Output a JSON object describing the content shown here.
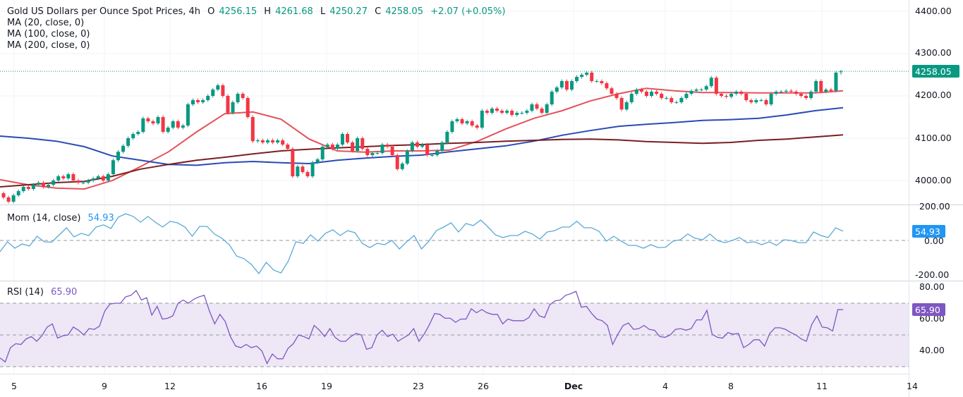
{
  "header": {
    "symbol": "Gold US Dollars per Ounce Spot Prices, 4h",
    "open_label": "O",
    "open": "4256.15",
    "high_label": "H",
    "high": "4261.68",
    "low_label": "L",
    "low": "4250.27",
    "close_label": "C",
    "close": "4258.05",
    "change": "+2.07 (+0.05%)"
  },
  "indicators": {
    "ma20": "MA (20, close, 0)",
    "ma100": "MA (100, close, 0)",
    "ma200": "MA (200, close, 0)",
    "mom_label": "Mom (14, close)",
    "mom_value": "54.93",
    "rsi_label": "RSI (14)",
    "rsi_value": "65.90"
  },
  "colors": {
    "up": "#089981",
    "down": "#f23645",
    "ma20": "#e5525a",
    "ma100": "#2a4bb5",
    "ma200": "#7a1f22",
    "mom": "#5aa9d6",
    "rsi": "#7e57c2",
    "rsi_band": "#ede7f6"
  },
  "price_axis": {
    "ticks": [
      "4400.00",
      "4300.00",
      "4200.00",
      "4100.00",
      "4000.00"
    ],
    "last_price": "4258.05"
  },
  "mom_axis": {
    "ticks": [
      "200.00",
      "0.00",
      "-200.00"
    ],
    "last": "54.93"
  },
  "rsi_axis": {
    "ticks": [
      "80.00",
      "60.00",
      "40.00"
    ],
    "last": "65.90"
  },
  "time_axis": {
    "labels": [
      "5",
      "9",
      "12",
      "16",
      "19",
      "23",
      "26",
      "Dec",
      "4",
      "8",
      "11",
      "14"
    ]
  },
  "chart_data": [
    {
      "type": "candlestick",
      "title": "Gold US Dollars per Ounce Spot Prices, 4h",
      "ylim": [
        3930,
        4430
      ],
      "last_bar": {
        "open": 4256.15,
        "high": 4261.68,
        "low": 4250.27,
        "close": 4258.05
      },
      "closes": [
        3960,
        3950,
        3965,
        3975,
        3985,
        3980,
        3990,
        3995,
        3985,
        3990,
        4000,
        4010,
        4005,
        4015,
        4000,
        3995,
        3995,
        4000,
        4005,
        4010,
        4000,
        4015,
        4048,
        4068,
        4082,
        4100,
        4110,
        4115,
        4147,
        4140,
        4135,
        4150,
        4115,
        4125,
        4140,
        4125,
        4130,
        4180,
        4190,
        4185,
        4190,
        4200,
        4215,
        4225,
        4200,
        4160,
        4185,
        4205,
        4195,
        4150,
        4093,
        4095,
        4090,
        4095,
        4090,
        4095,
        4085,
        4075,
        4010,
        4033,
        4020,
        4010,
        4043,
        4050,
        4080,
        4085,
        4075,
        4085,
        4110,
        4090,
        4070,
        4100,
        4075,
        4060,
        4065,
        4065,
        4085,
        4080,
        4060,
        4027,
        4040,
        4070,
        4090,
        4080,
        4085,
        4060,
        4060,
        4070,
        4090,
        4115,
        4140,
        4145,
        4135,
        4140,
        4130,
        4125,
        4165,
        4160,
        4170,
        4165,
        4160,
        4165,
        4155,
        4160,
        4160,
        4165,
        4180,
        4170,
        4160,
        4180,
        4210,
        4220,
        4235,
        4215,
        4235,
        4245,
        4250,
        4255,
        4235,
        4235,
        4230,
        4218,
        4205,
        4195,
        4168,
        4185,
        4205,
        4215,
        4210,
        4200,
        4210,
        4205,
        4195,
        4195,
        4185,
        4185,
        4195,
        4205,
        4212,
        4215,
        4215,
        4223,
        4243,
        4205,
        4200,
        4198,
        4205,
        4210,
        4205,
        4190,
        4185,
        4190,
        4190,
        4180,
        4205,
        4210,
        4210,
        4212,
        4210,
        4205,
        4200,
        4195,
        4210,
        4235,
        4210,
        4215,
        4212,
        4255,
        4258.05
      ],
      "series": [
        {
          "name": "MA (20, close, 0)",
          "values": [
            4002,
            3990,
            3982,
            3980,
            4000,
            4033,
            4068,
            4115,
            4158,
            4162,
            4145,
            4098,
            4070,
            4067,
            4070,
            4070,
            4072,
            4093,
            4122,
            4147,
            4165,
            4188,
            4205,
            4218,
            4212,
            4208,
            4208,
            4207,
            4207,
            4207,
            4212
          ]
        },
        {
          "name": "MA (100, close, 0)",
          "values": [
            4105,
            4100,
            4093,
            4080,
            4058,
            4048,
            4038,
            4036,
            4042,
            4045,
            4042,
            4040,
            4048,
            4053,
            4057,
            4060,
            4068,
            4075,
            4082,
            4093,
            4107,
            4118,
            4128,
            4133,
            4137,
            4142,
            4144,
            4147,
            4155,
            4165,
            4172
          ]
        },
        {
          "name": "MA (200, close, 0)",
          "values": [
            3985,
            3990,
            3995,
            3998,
            4010,
            4027,
            4038,
            4048,
            4055,
            4063,
            4070,
            4074,
            4077,
            4080,
            4083,
            4085,
            4088,
            4090,
            4093,
            4095,
            4097,
            4098,
            4096,
            4092,
            4090,
            4088,
            4090,
            4095,
            4098,
            4103,
            4108
          ]
        }
      ]
    },
    {
      "type": "line",
      "title": "Mom (14, close)",
      "ylim": [
        -200,
        200
      ],
      "reference_line": 0,
      "values": [
        -67,
        -8,
        -46,
        -21,
        -33,
        25,
        -8,
        -10,
        33,
        75,
        21,
        42,
        29,
        79,
        92,
        71,
        138,
        158,
        142,
        108,
        142,
        108,
        79,
        113,
        104,
        79,
        25,
        83,
        83,
        38,
        13,
        -25,
        -92,
        -108,
        -142,
        -196,
        -129,
        -175,
        -192,
        -121,
        -8,
        -17,
        33,
        -4,
        42,
        63,
        29,
        58,
        46,
        -17,
        -42,
        -17,
        -25,
        0,
        -50,
        -8,
        29,
        -50,
        -4,
        58,
        79,
        104,
        50,
        100,
        88,
        121,
        79,
        33,
        17,
        29,
        29,
        54,
        38,
        8,
        50,
        58,
        79,
        79,
        113,
        75,
        75,
        54,
        -4,
        25,
        -4,
        -29,
        -29,
        -46,
        -25,
        -42,
        -40,
        -4,
        4,
        38,
        13,
        4,
        38,
        0,
        -13,
        0,
        17,
        -13,
        -8,
        -25,
        -8,
        -29,
        4,
        0,
        -13,
        -13,
        50,
        29,
        17,
        75,
        54.93
      ]
    },
    {
      "type": "line",
      "title": "RSI (14)",
      "ylim": [
        25,
        82
      ],
      "bands": [
        30,
        50,
        70
      ],
      "values": [
        35.5,
        33,
        42,
        44.5,
        44,
        47.5,
        49,
        46,
        49.5,
        55,
        57,
        48,
        49.5,
        50,
        55,
        53,
        50,
        54,
        53.5,
        55.5,
        65,
        69.5,
        70,
        70,
        74,
        75,
        78,
        72,
        73.5,
        62.5,
        68,
        60,
        60.5,
        62,
        70,
        72,
        70,
        72.5,
        74,
        75,
        65,
        57,
        63,
        58.5,
        49,
        43,
        42,
        44,
        42,
        43,
        40,
        32,
        38,
        35,
        35,
        41.5,
        44.5,
        50,
        49,
        47.5,
        56,
        53,
        49,
        54,
        48.5,
        46,
        46,
        49,
        51,
        50,
        41,
        42,
        50,
        53,
        49,
        50.5,
        46,
        48,
        50,
        54,
        46,
        50.5,
        56.5,
        63.5,
        63,
        60.5,
        60.5,
        58,
        60,
        60,
        66.5,
        64,
        66,
        64,
        63,
        63,
        57,
        60,
        59,
        59,
        59,
        61,
        66.5,
        62,
        61,
        69,
        71.5,
        72,
        75,
        76,
        77.5,
        67.5,
        68,
        63.5,
        60,
        59,
        56,
        44,
        50.5,
        56,
        57.5,
        53.5,
        54,
        56,
        53.5,
        53,
        49,
        48.5,
        50,
        53.5,
        54,
        53,
        54,
        59.5,
        59.5,
        65.5,
        50.5,
        48.5,
        48,
        51.5,
        50.5,
        51,
        42,
        44,
        47,
        47,
        43,
        51,
        54.5,
        54.5,
        53.5,
        51.5,
        50,
        47.5,
        46,
        56.5,
        62,
        55,
        54.5,
        52.5,
        66,
        65.9
      ]
    }
  ]
}
